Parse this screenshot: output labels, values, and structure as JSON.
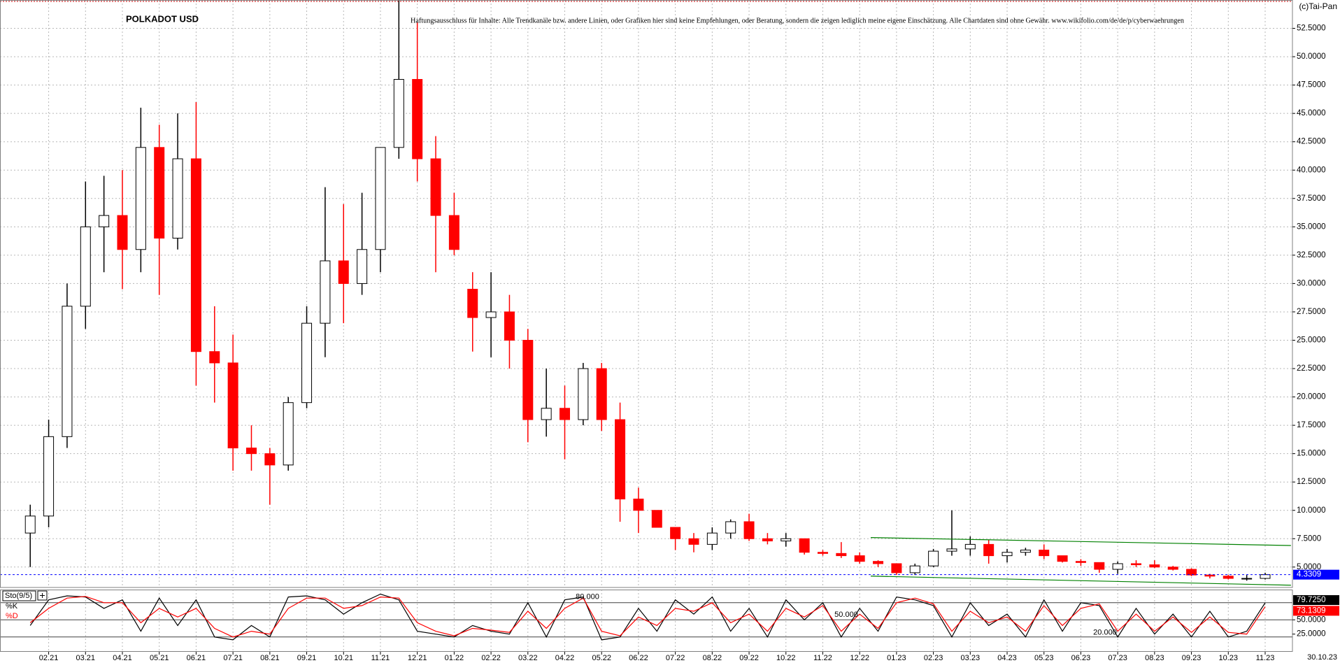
{
  "chart_data": [
    {
      "type": "candlestick",
      "title": "POLKADOT USD",
      "note": "Haftungsausschluss für Inhalte: Alle Trendkanäle bzw. andere Linien, oder Grafiken hier sind keine Empfehlungen, oder Beratung, sondern die zeigen lediglich meine eigene Einschätzung. Alle Chartdaten sind ohne Gewähr.  www.wikifolio.com/de/de/p/cyberwaehrungen",
      "source": "(c)Tai-Pan",
      "last_date": "30.10.23",
      "x": [
        0.5,
        1,
        1.5,
        2,
        2.5,
        3,
        3.5,
        4,
        4.5,
        5,
        5.5,
        6,
        6.5,
        7,
        7.5,
        8,
        8.5,
        9,
        9.5,
        10,
        10.5,
        11,
        11.5,
        12,
        12.5,
        13,
        13.5,
        14,
        14.5,
        15,
        15.5,
        16,
        16.5,
        17,
        17.5,
        18,
        18.5,
        19,
        19.5,
        20,
        20.5,
        21,
        21.5,
        22,
        22.5,
        23,
        23.5,
        24,
        24.5,
        25,
        25.5,
        26,
        26.5,
        27,
        27.5,
        28,
        28.5,
        29,
        29.5,
        30,
        30.5,
        31,
        31.5,
        32,
        32.5,
        33,
        33.5,
        34
      ],
      "open": [
        8,
        9.5,
        16.5,
        28,
        35,
        36,
        33,
        42,
        34,
        41,
        24,
        23,
        15.5,
        15,
        14,
        19.5,
        26.5,
        32,
        30,
        33,
        42,
        48,
        41,
        36,
        29.5,
        27,
        27.5,
        25,
        18,
        19,
        18,
        22.5,
        18,
        11,
        10,
        8.5,
        7.5,
        7,
        8,
        9,
        7.5,
        7.3,
        7.5,
        6.3,
        6.2,
        6.0,
        5.5,
        5.3,
        4.5,
        5.1,
        6.4,
        6.6,
        7,
        6.0,
        6.3,
        6.5,
        6.0,
        5.5,
        5.4,
        4.8,
        5.3,
        5.2,
        5.0,
        4.8,
        4.3,
        4.2,
        4.0,
        4.0
      ],
      "high": [
        10.5,
        18,
        30,
        39,
        39.5,
        40,
        45.5,
        44,
        45,
        46,
        28,
        25.5,
        17.5,
        15.5,
        20,
        28,
        38.5,
        37,
        38,
        42,
        55,
        53,
        43,
        38,
        31,
        31,
        29,
        26,
        22.5,
        21,
        23,
        23,
        19.5,
        12,
        10,
        8.5,
        8,
        8.5,
        9.2,
        9.7,
        8,
        8,
        7.5,
        6.5,
        7.2,
        6.3,
        5.6,
        5.3,
        5.3,
        6.6,
        10,
        7.7,
        7.4,
        6.6,
        6.7,
        7.0,
        6.0,
        5.7,
        5.4,
        5.5,
        5.6,
        5.6,
        5.1,
        4.9,
        4.4,
        4.3,
        4.3,
        4.5
      ],
      "low": [
        5,
        8.5,
        15.5,
        26,
        31,
        29.5,
        31,
        29,
        33,
        21,
        19.5,
        13.5,
        13.5,
        10.5,
        13.5,
        19,
        23.5,
        26.5,
        29,
        31,
        41,
        39,
        31,
        32.5,
        24,
        23.5,
        22.5,
        16,
        16.5,
        14.5,
        17.5,
        17,
        9,
        8,
        8.5,
        6.5,
        6.3,
        6.5,
        7.5,
        7.3,
        7,
        6.8,
        6.1,
        6,
        5.8,
        5.3,
        5.0,
        4.3,
        4.3,
        5.0,
        6.0,
        6.0,
        5.3,
        5.4,
        6.0,
        5.7,
        5.4,
        5.1,
        4.5,
        4.4,
        5.0,
        4.9,
        4.7,
        4.2,
        4.0,
        3.9,
        3.8,
        3.9
      ],
      "close": [
        9.5,
        16.5,
        28,
        35,
        36,
        33,
        42,
        34,
        41,
        24,
        23,
        15.5,
        15,
        14,
        19.5,
        26.5,
        32,
        30,
        33,
        42,
        48,
        41,
        36,
        33,
        27,
        27.5,
        25,
        18,
        19,
        18,
        22.5,
        18,
        11,
        10,
        8.5,
        7.5,
        7,
        8,
        9,
        7.5,
        7.3,
        7.5,
        6.3,
        6.2,
        6.0,
        5.5,
        5.3,
        4.5,
        5.1,
        6.4,
        6.6,
        7.0,
        6.0,
        6.3,
        6.5,
        6.0,
        5.5,
        5.4,
        4.8,
        5.3,
        5.2,
        5.0,
        4.8,
        4.3,
        4.2,
        4.0,
        4.0,
        4.3309
      ],
      "up_color": "#000000",
      "down_color": "#ff0000",
      "xlim": [
        -0.32,
        34.74
      ],
      "ylim": [
        3.2,
        55
      ],
      "grid": true,
      "xticks": [
        {
          "value": 1,
          "label": "02.21"
        },
        {
          "value": 2,
          "label": "03.21"
        },
        {
          "value": 3,
          "label": "04.21"
        },
        {
          "value": 4,
          "label": "05.21"
        },
        {
          "value": 5,
          "label": "06.21"
        },
        {
          "value": 6,
          "label": "07.21"
        },
        {
          "value": 7,
          "label": "08.21"
        },
        {
          "value": 8,
          "label": "09.21"
        },
        {
          "value": 9,
          "label": "10.21"
        },
        {
          "value": 10,
          "label": "11.21"
        },
        {
          "value": 11,
          "label": "12.21"
        },
        {
          "value": 12,
          "label": "01.22"
        },
        {
          "value": 13,
          "label": "02.22"
        },
        {
          "value": 14,
          "label": "03.22"
        },
        {
          "value": 15,
          "label": "04.22"
        },
        {
          "value": 16,
          "label": "05.22"
        },
        {
          "value": 17,
          "label": "06.22"
        },
        {
          "value": 18,
          "label": "07.22"
        },
        {
          "value": 19,
          "label": "08.22"
        },
        {
          "value": 20,
          "label": "09.22"
        },
        {
          "value": 21,
          "label": "10.22"
        },
        {
          "value": 22,
          "label": "11.22"
        },
        {
          "value": 23,
          "label": "12.22"
        },
        {
          "value": 24,
          "label": "01.23"
        },
        {
          "value": 25,
          "label": "02.23"
        },
        {
          "value": 26,
          "label": "03.23"
        },
        {
          "value": 27,
          "label": "04.23"
        },
        {
          "value": 28,
          "label": "05.23"
        },
        {
          "value": 29,
          "label": "06.23"
        },
        {
          "value": 30,
          "label": "07.23"
        },
        {
          "value": 31,
          "label": "08.23"
        },
        {
          "value": 32,
          "label": "09.23"
        },
        {
          "value": 33,
          "label": "10.23"
        },
        {
          "value": 34,
          "label": "11.23"
        }
      ],
      "yticks": [
        {
          "value": 5,
          "label": "5.0000"
        },
        {
          "value": 7.5,
          "label": "7.5000"
        },
        {
          "value": 10,
          "label": "10.0000"
        },
        {
          "value": 12.5,
          "label": "12.5000"
        },
        {
          "value": 15,
          "label": "15.0000"
        },
        {
          "value": 17.5,
          "label": "17.5000"
        },
        {
          "value": 20,
          "label": "20.0000"
        },
        {
          "value": 22.5,
          "label": "22.5000"
        },
        {
          "value": 25,
          "label": "25.0000"
        },
        {
          "value": 27.5,
          "label": "27.5000"
        },
        {
          "value": 30,
          "label": "30.0000"
        },
        {
          "value": 32.5,
          "label": "32.5000"
        },
        {
          "value": 35,
          "label": "35.0000"
        },
        {
          "value": 37.5,
          "label": "37.5000"
        },
        {
          "value": 40,
          "label": "40.0000"
        },
        {
          "value": 42.5,
          "label": "42.5000"
        },
        {
          "value": 45,
          "label": "45.0000"
        },
        {
          "value": 47.5,
          "label": "47.5000"
        },
        {
          "value": 50,
          "label": "50.0000"
        },
        {
          "value": 52.5,
          "label": "52.5000"
        }
      ],
      "current": {
        "value": 4.3309,
        "label": "4.3309",
        "color": "#0000ff"
      },
      "trendlines": [
        {
          "color": "#008000",
          "x": [
            23.3,
            34.7
          ],
          "y": [
            7.6,
            6.9
          ]
        },
        {
          "color": "#008000",
          "x": [
            23.3,
            34.7
          ],
          "y": [
            4.2,
            3.4
          ]
        }
      ]
    },
    {
      "type": "stochastic",
      "title": "Sto(9/5)",
      "series": [
        {
          "name": "%K",
          "color": "#000000",
          "last_label": "79.7250",
          "values": [
            40,
            85,
            92,
            90,
            70,
            85,
            30,
            88,
            40,
            85,
            20,
            15,
            40,
            20,
            90,
            92,
            85,
            60,
            80,
            95,
            85,
            30,
            25,
            20,
            40,
            30,
            25,
            80,
            20,
            85,
            90,
            15,
            20,
            70,
            30,
            85,
            60,
            90,
            30,
            70,
            20,
            85,
            50,
            80,
            20,
            70,
            30,
            90,
            85,
            75,
            20,
            80,
            40,
            60,
            20,
            85,
            30,
            80,
            75,
            20,
            70,
            25,
            60,
            20,
            65,
            20,
            30,
            79.725
          ]
        },
        {
          "name": "%D",
          "color": "#ff0000",
          "last_label": "73.1309",
          "values": [
            45,
            70,
            88,
            91,
            80,
            80,
            45,
            70,
            55,
            70,
            35,
            20,
            30,
            25,
            70,
            88,
            88,
            70,
            75,
            90,
            88,
            45,
            30,
            22,
            35,
            32,
            28,
            65,
            35,
            70,
            88,
            30,
            22,
            55,
            40,
            70,
            65,
            80,
            45,
            60,
            30,
            70,
            55,
            75,
            30,
            60,
            35,
            80,
            88,
            78,
            30,
            65,
            45,
            55,
            30,
            75,
            40,
            70,
            78,
            30,
            60,
            30,
            55,
            28,
            55,
            28,
            25,
            73.1309
          ]
        }
      ],
      "ylim": [
        -6,
        103
      ],
      "yticks": [
        {
          "value": 25,
          "label": "25.0000"
        },
        {
          "value": 50,
          "label": "50.0000"
        }
      ],
      "levels": [
        {
          "value": 80,
          "label": "80.000"
        },
        {
          "value": 50,
          "label": "50.000"
        },
        {
          "value": 20,
          "label": "20.000"
        }
      ]
    }
  ]
}
